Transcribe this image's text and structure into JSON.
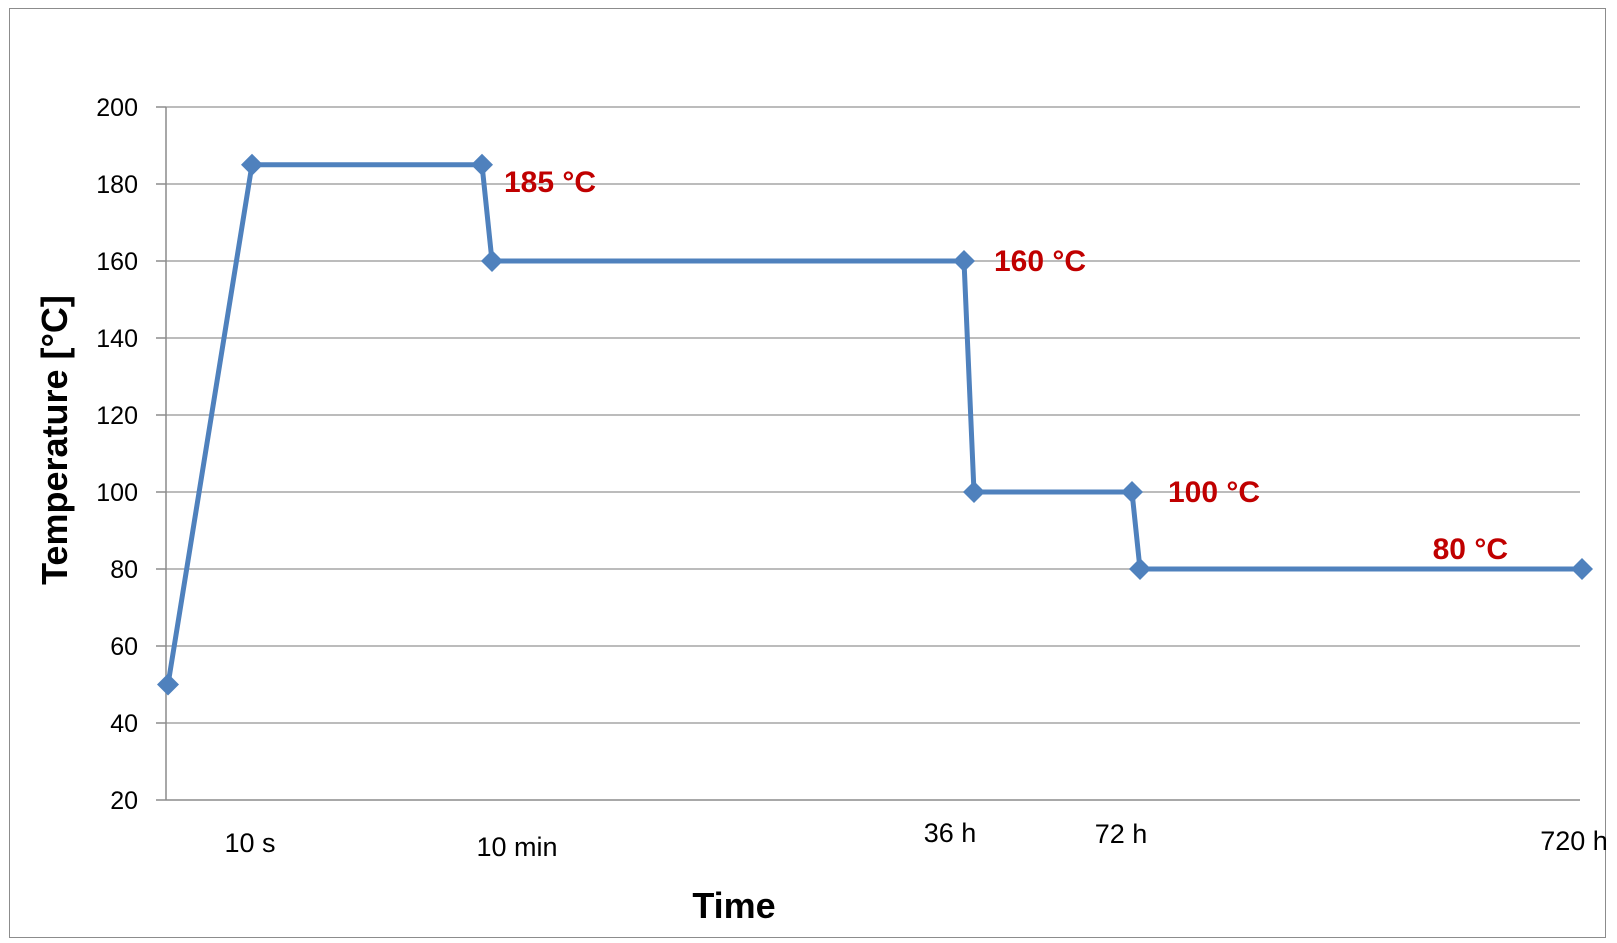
{
  "chart_data": {
    "type": "line",
    "title": "",
    "xlabel": "Time",
    "ylabel": "Temperature [°C]",
    "ylim": [
      20,
      200
    ],
    "yticks": [
      20,
      40,
      60,
      80,
      100,
      120,
      140,
      160,
      180,
      200
    ],
    "grid": true,
    "legend": "none",
    "line_color": "#4f81bd",
    "label_color": "#c00000",
    "x_tick_labels": [
      {
        "label": "10 s",
        "at": 1
      },
      {
        "label": "10 min",
        "at": 2
      },
      {
        "label": "36 h",
        "at": 4
      },
      {
        "label": "72 h",
        "at": 6
      },
      {
        "label": "720 h",
        "at": 8
      }
    ],
    "points": [
      {
        "x": 0,
        "y": 50
      },
      {
        "x": 1,
        "y": 185
      },
      {
        "x": 2,
        "y": 185
      },
      {
        "x": 2,
        "y": 160
      },
      {
        "x": 4,
        "y": 160
      },
      {
        "x": 4,
        "y": 100
      },
      {
        "x": 6,
        "y": 100
      },
      {
        "x": 6,
        "y": 80
      },
      {
        "x": 8,
        "y": 80
      }
    ],
    "annotations": [
      {
        "text": "185 °C",
        "point": 2
      },
      {
        "text": "160 °C",
        "point": 4
      },
      {
        "text": "100 °C",
        "point": 6
      },
      {
        "text": "80 °C",
        "point": 8
      }
    ]
  }
}
